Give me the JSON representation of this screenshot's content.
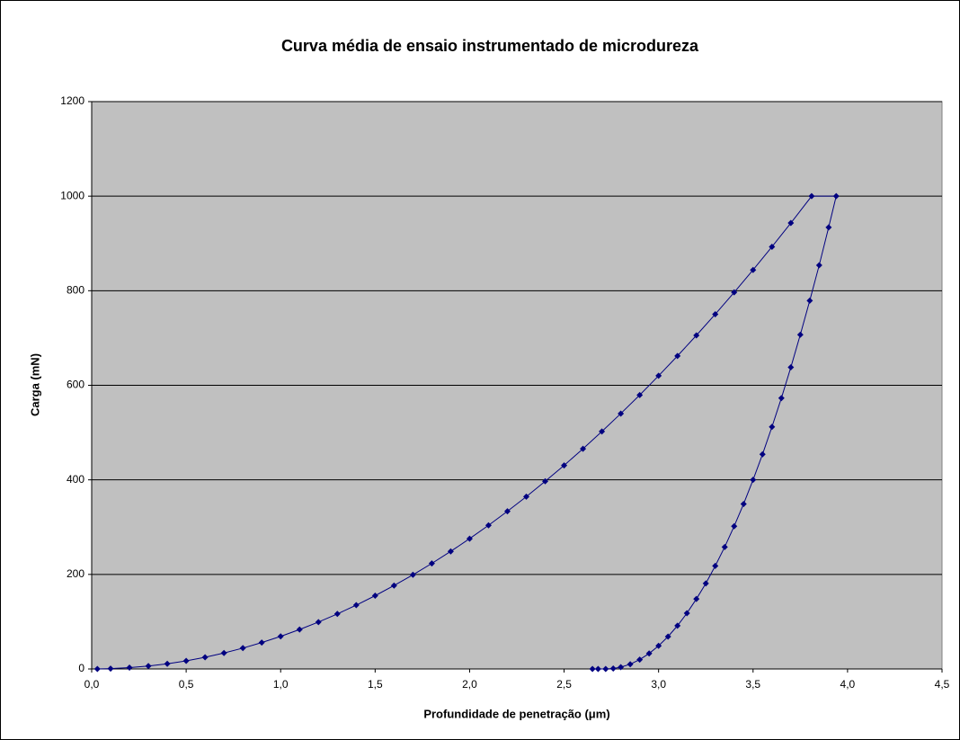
{
  "chart_data": {
    "type": "scatter",
    "title": "Curva média de ensaio instrumentado de microdureza",
    "x_label": "Profundidade de penetração (μm)",
    "y_label": "Carga (mN)",
    "xlim": [
      0,
      4.5
    ],
    "xticks": [
      {
        "value": 0,
        "label": "0,0"
      },
      {
        "value": 0.5,
        "label": "0,5"
      },
      {
        "value": 1,
        "label": "1,0"
      },
      {
        "value": 1.5,
        "label": "1,5"
      },
      {
        "value": 2,
        "label": "2,0"
      },
      {
        "value": 2.5,
        "label": "2,5"
      },
      {
        "value": 3,
        "label": "3,0"
      },
      {
        "value": 3.5,
        "label": "3,5"
      },
      {
        "value": 4,
        "label": "4,0"
      },
      {
        "value": 4.5,
        "label": "4,5"
      }
    ],
    "ylim": [
      0,
      1200
    ],
    "yticks": [
      0,
      200,
      400,
      600,
      800,
      1000,
      1200
    ],
    "grid": true,
    "series": [
      {
        "color": "#000080",
        "x": [
          0.03,
          0.1,
          0.2,
          0.3,
          0.4,
          0.5,
          0.6,
          0.7,
          0.8,
          0.9,
          1.0,
          1.1,
          1.2,
          1.3,
          1.4,
          1.5,
          1.6,
          1.7,
          1.8,
          1.9,
          2.0,
          2.1,
          2.2,
          2.3,
          2.4,
          2.5,
          2.6,
          2.7,
          2.8,
          2.9,
          3.0,
          3.1,
          3.2,
          3.3,
          3.4,
          3.5,
          3.6,
          3.7,
          3.81,
          3.94,
          3.9,
          3.85,
          3.8,
          3.75,
          3.7,
          3.65,
          3.6,
          3.55,
          3.5,
          3.45,
          3.4,
          3.35,
          3.3,
          3.25,
          3.2,
          3.15,
          3.1,
          3.05,
          3.0,
          2.95,
          2.9,
          2.85,
          2.8,
          2.76,
          2.72,
          2.68,
          2.65
        ],
        "values": [
          0,
          0.7,
          2.8,
          6.2,
          11.0,
          17.2,
          24.8,
          33.8,
          44.1,
          55.8,
          68.9,
          83.4,
          99.2,
          116.4,
          135.0,
          155.0,
          176.4,
          199.1,
          223.2,
          248.7,
          275.6,
          303.8,
          333.5,
          364.5,
          396.9,
          430.6,
          465.8,
          502.3,
          540.2,
          579.4,
          620.1,
          662.1,
          705.5,
          750.3,
          796.5,
          844.0,
          892.9,
          943.2,
          1000,
          1000,
          934,
          854,
          779,
          707,
          638,
          573,
          512,
          454,
          400,
          349,
          302,
          258,
          218,
          181,
          148,
          118,
          91.5,
          68.5,
          48.9,
          32.7,
          19.8,
          10.1,
          3.8,
          0.9,
          0,
          0,
          0
        ]
      }
    ]
  }
}
